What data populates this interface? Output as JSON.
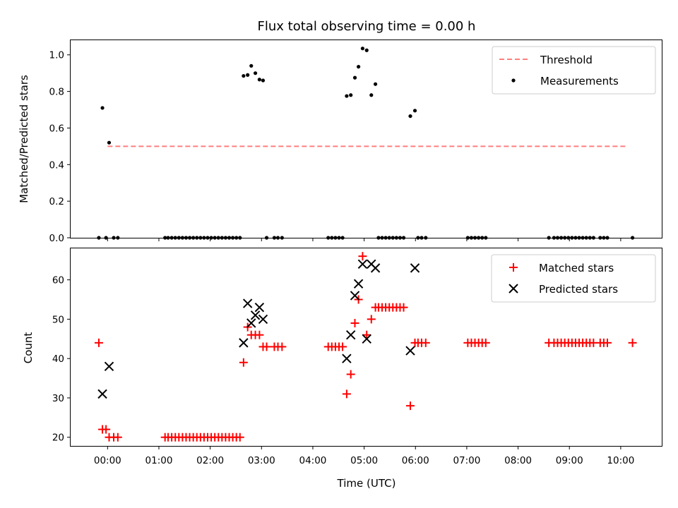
{
  "chart_data": [
    {
      "type": "scatter",
      "title": "Flux total observing time = 0.00 h",
      "xlabel": "",
      "ylabel": "Matched/Predicted stars",
      "x_unit": "hours (UTC)",
      "ylim": [
        0,
        1.08
      ],
      "yticks": [
        "0.0",
        "0.2",
        "0.4",
        "0.6",
        "0.8",
        "1.0"
      ],
      "legend_position": "top-right",
      "threshold": {
        "name": "Threshold",
        "value": 0.5,
        "x_range": [
          0.0,
          10.1
        ],
        "style": "dashed",
        "color": "#ff7f7f"
      },
      "series": [
        {
          "name": "Measurements",
          "marker": "dot",
          "color": "#000000",
          "points": [
            [
              -0.17,
              0.0
            ],
            [
              -0.1,
              0.71
            ],
            [
              -0.03,
              0.0
            ],
            [
              0.03,
              0.52
            ],
            [
              0.12,
              0.0
            ],
            [
              0.2,
              0.0
            ],
            [
              1.12,
              0.0
            ],
            [
              1.18,
              0.0
            ],
            [
              1.25,
              0.0
            ],
            [
              1.32,
              0.0
            ],
            [
              1.39,
              0.0
            ],
            [
              1.46,
              0.0
            ],
            [
              1.53,
              0.0
            ],
            [
              1.6,
              0.0
            ],
            [
              1.67,
              0.0
            ],
            [
              1.74,
              0.0
            ],
            [
              1.81,
              0.0
            ],
            [
              1.88,
              0.0
            ],
            [
              1.95,
              0.0
            ],
            [
              2.02,
              0.0
            ],
            [
              2.09,
              0.0
            ],
            [
              2.16,
              0.0
            ],
            [
              2.23,
              0.0
            ],
            [
              2.3,
              0.0
            ],
            [
              2.37,
              0.0
            ],
            [
              2.44,
              0.0
            ],
            [
              2.51,
              0.0
            ],
            [
              2.58,
              0.0
            ],
            [
              2.65,
              0.885
            ],
            [
              2.73,
              0.89
            ],
            [
              2.8,
              0.94
            ],
            [
              2.88,
              0.9
            ],
            [
              2.96,
              0.865
            ],
            [
              3.03,
              0.86
            ],
            [
              3.1,
              0.0
            ],
            [
              3.25,
              0.0
            ],
            [
              3.32,
              0.0
            ],
            [
              3.4,
              0.0
            ],
            [
              4.3,
              0.0
            ],
            [
              4.37,
              0.0
            ],
            [
              4.44,
              0.0
            ],
            [
              4.51,
              0.0
            ],
            [
              4.58,
              0.0
            ],
            [
              4.66,
              0.775
            ],
            [
              4.74,
              0.78
            ],
            [
              4.82,
              0.875
            ],
            [
              4.89,
              0.935
            ],
            [
              4.97,
              1.035
            ],
            [
              5.05,
              1.025
            ],
            [
              5.14,
              0.78
            ],
            [
              5.22,
              0.84
            ],
            [
              5.28,
              0.0
            ],
            [
              5.35,
              0.0
            ],
            [
              5.42,
              0.0
            ],
            [
              5.49,
              0.0
            ],
            [
              5.56,
              0.0
            ],
            [
              5.63,
              0.0
            ],
            [
              5.7,
              0.0
            ],
            [
              5.77,
              0.0
            ],
            [
              5.9,
              0.665
            ],
            [
              5.99,
              0.695
            ],
            [
              6.05,
              0.0
            ],
            [
              6.12,
              0.0
            ],
            [
              6.2,
              0.0
            ],
            [
              7.02,
              0.0
            ],
            [
              7.09,
              0.0
            ],
            [
              7.16,
              0.0
            ],
            [
              7.23,
              0.0
            ],
            [
              7.3,
              0.0
            ],
            [
              7.37,
              0.0
            ],
            [
              8.6,
              0.0
            ],
            [
              8.7,
              0.0
            ],
            [
              8.77,
              0.0
            ],
            [
              8.84,
              0.0
            ],
            [
              8.91,
              0.0
            ],
            [
              8.98,
              0.0
            ],
            [
              9.05,
              0.0
            ],
            [
              9.12,
              0.0
            ],
            [
              9.19,
              0.0
            ],
            [
              9.26,
              0.0
            ],
            [
              9.33,
              0.0
            ],
            [
              9.4,
              0.0
            ],
            [
              9.47,
              0.0
            ],
            [
              9.6,
              0.0
            ],
            [
              9.67,
              0.0
            ],
            [
              9.74,
              0.0
            ],
            [
              10.23,
              0.0
            ]
          ]
        }
      ]
    },
    {
      "type": "scatter",
      "title": "",
      "xlabel": "Time (UTC)",
      "ylabel": "Count",
      "x_unit": "hours (UTC)",
      "xlim": [
        -0.72,
        10.8
      ],
      "xticks": [
        {
          "value": 0,
          "label": "00:00"
        },
        {
          "value": 1,
          "label": "01:00"
        },
        {
          "value": 2,
          "label": "02:00"
        },
        {
          "value": 3,
          "label": "03:00"
        },
        {
          "value": 4,
          "label": "04:00"
        },
        {
          "value": 5,
          "label": "05:00"
        },
        {
          "value": 6,
          "label": "06:00"
        },
        {
          "value": 7,
          "label": "07:00"
        },
        {
          "value": 8,
          "label": "08:00"
        },
        {
          "value": 9,
          "label": "09:00"
        },
        {
          "value": 10,
          "label": "10:00"
        }
      ],
      "ylim": [
        17.8,
        68
      ],
      "yticks": [
        "20",
        "30",
        "40",
        "50",
        "60"
      ],
      "legend_position": "top-right",
      "series": [
        {
          "name": "Matched stars",
          "marker": "plus",
          "color": "#ff0000",
          "points": [
            [
              -0.17,
              44
            ],
            [
              -0.1,
              22
            ],
            [
              -0.03,
              22
            ],
            [
              0.03,
              20
            ],
            [
              0.12,
              20
            ],
            [
              0.2,
              20
            ],
            [
              1.12,
              20
            ],
            [
              1.18,
              20
            ],
            [
              1.25,
              20
            ],
            [
              1.32,
              20
            ],
            [
              1.39,
              20
            ],
            [
              1.46,
              20
            ],
            [
              1.53,
              20
            ],
            [
              1.6,
              20
            ],
            [
              1.67,
              20
            ],
            [
              1.74,
              20
            ],
            [
              1.81,
              20
            ],
            [
              1.88,
              20
            ],
            [
              1.95,
              20
            ],
            [
              2.02,
              20
            ],
            [
              2.09,
              20
            ],
            [
              2.16,
              20
            ],
            [
              2.23,
              20
            ],
            [
              2.3,
              20
            ],
            [
              2.37,
              20
            ],
            [
              2.44,
              20
            ],
            [
              2.51,
              20
            ],
            [
              2.58,
              20
            ],
            [
              2.65,
              39
            ],
            [
              2.73,
              48
            ],
            [
              2.8,
              46
            ],
            [
              2.88,
              46
            ],
            [
              2.96,
              46
            ],
            [
              3.03,
              43
            ],
            [
              3.1,
              43
            ],
            [
              3.25,
              43
            ],
            [
              3.32,
              43
            ],
            [
              3.4,
              43
            ],
            [
              4.3,
              43
            ],
            [
              4.37,
              43
            ],
            [
              4.44,
              43
            ],
            [
              4.51,
              43
            ],
            [
              4.58,
              43
            ],
            [
              4.66,
              31
            ],
            [
              4.74,
              36
            ],
            [
              4.82,
              49
            ],
            [
              4.89,
              55
            ],
            [
              4.97,
              66
            ],
            [
              5.05,
              46
            ],
            [
              5.14,
              50
            ],
            [
              5.22,
              53
            ],
            [
              5.28,
              53
            ],
            [
              5.35,
              53
            ],
            [
              5.42,
              53
            ],
            [
              5.49,
              53
            ],
            [
              5.56,
              53
            ],
            [
              5.63,
              53
            ],
            [
              5.7,
              53
            ],
            [
              5.77,
              53
            ],
            [
              5.9,
              28
            ],
            [
              5.99,
              44
            ],
            [
              6.05,
              44
            ],
            [
              6.12,
              44
            ],
            [
              6.2,
              44
            ],
            [
              7.02,
              44
            ],
            [
              7.09,
              44
            ],
            [
              7.16,
              44
            ],
            [
              7.23,
              44
            ],
            [
              7.3,
              44
            ],
            [
              7.37,
              44
            ],
            [
              8.6,
              44
            ],
            [
              8.7,
              44
            ],
            [
              8.77,
              44
            ],
            [
              8.84,
              44
            ],
            [
              8.91,
              44
            ],
            [
              8.98,
              44
            ],
            [
              9.05,
              44
            ],
            [
              9.12,
              44
            ],
            [
              9.19,
              44
            ],
            [
              9.26,
              44
            ],
            [
              9.33,
              44
            ],
            [
              9.4,
              44
            ],
            [
              9.47,
              44
            ],
            [
              9.6,
              44
            ],
            [
              9.67,
              44
            ],
            [
              9.74,
              44
            ],
            [
              10.23,
              44
            ]
          ]
        },
        {
          "name": "Predicted stars",
          "marker": "x",
          "color": "#000000",
          "points": [
            [
              -0.1,
              31
            ],
            [
              0.03,
              38
            ],
            [
              2.65,
              44
            ],
            [
              2.73,
              54
            ],
            [
              2.8,
              49
            ],
            [
              2.88,
              51
            ],
            [
              2.96,
              53
            ],
            [
              3.03,
              50
            ],
            [
              4.66,
              40
            ],
            [
              4.74,
              46
            ],
            [
              4.82,
              56
            ],
            [
              4.89,
              59
            ],
            [
              4.97,
              64
            ],
            [
              5.05,
              45
            ],
            [
              5.14,
              64
            ],
            [
              5.22,
              63
            ],
            [
              5.9,
              42
            ],
            [
              5.99,
              63
            ]
          ]
        }
      ]
    }
  ]
}
